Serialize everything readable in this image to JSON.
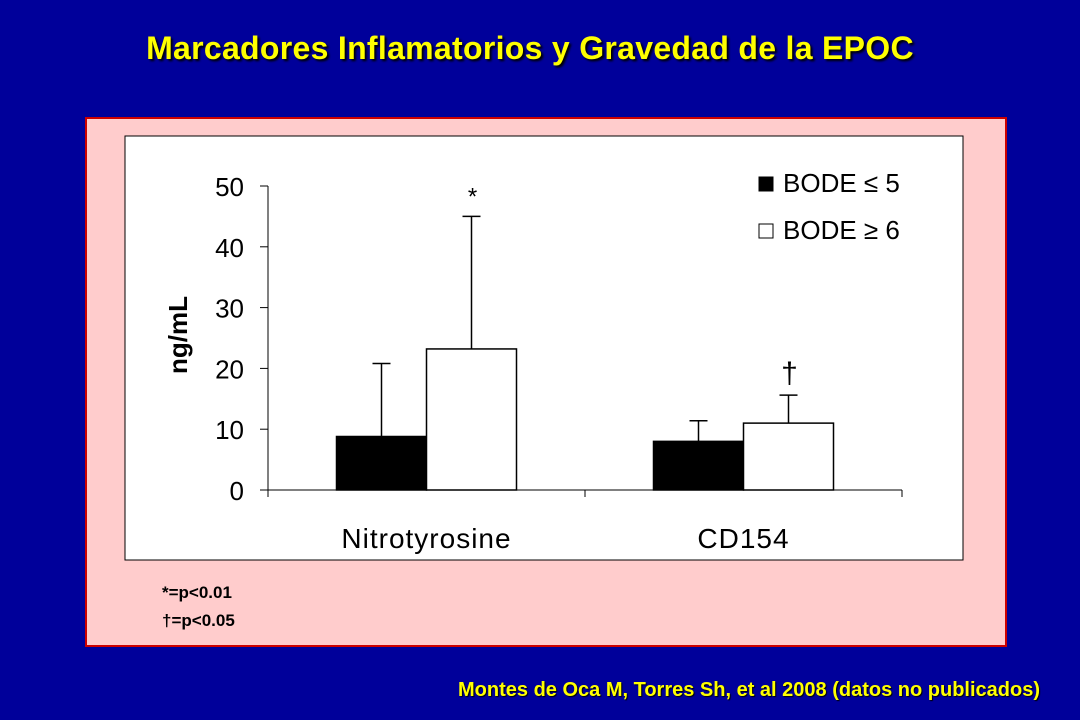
{
  "slide": {
    "title": "Marcadores Inflamatorios y Gravedad de la EPOC",
    "citation": "Montes de Oca M, Torres Sh, et al 2008 (datos no publicados)"
  },
  "footnotes": [
    "*=p<0.01",
    "†=p<0.05"
  ],
  "colors": {
    "background": "#00009a",
    "title": "#ffff00",
    "panel": "#ffcccc",
    "panel_border": "#cc0000",
    "series_bode_le5": "#000000",
    "series_bode_ge6": "#ffffff"
  },
  "chart_data": {
    "type": "bar",
    "title": "",
    "xlabel": "",
    "ylabel": "ng/mL",
    "ylim": [
      0,
      50
    ],
    "yticks": [
      0,
      10,
      20,
      30,
      40,
      50
    ],
    "categories": [
      "Nitrotyrosine",
      "CD154"
    ],
    "series": [
      {
        "name": "BODE ≤ 5",
        "color": "#000000",
        "values": [
          8.8,
          8.0
        ],
        "error": [
          12.0,
          3.4
        ]
      },
      {
        "name": "BODE ≥ 6",
        "color": "#ffffff",
        "values": [
          23.2,
          11.0
        ],
        "error": [
          21.8,
          4.6
        ]
      }
    ],
    "significance": [
      "*",
      "†"
    ],
    "legend_position": "top-right",
    "grid": false
  }
}
